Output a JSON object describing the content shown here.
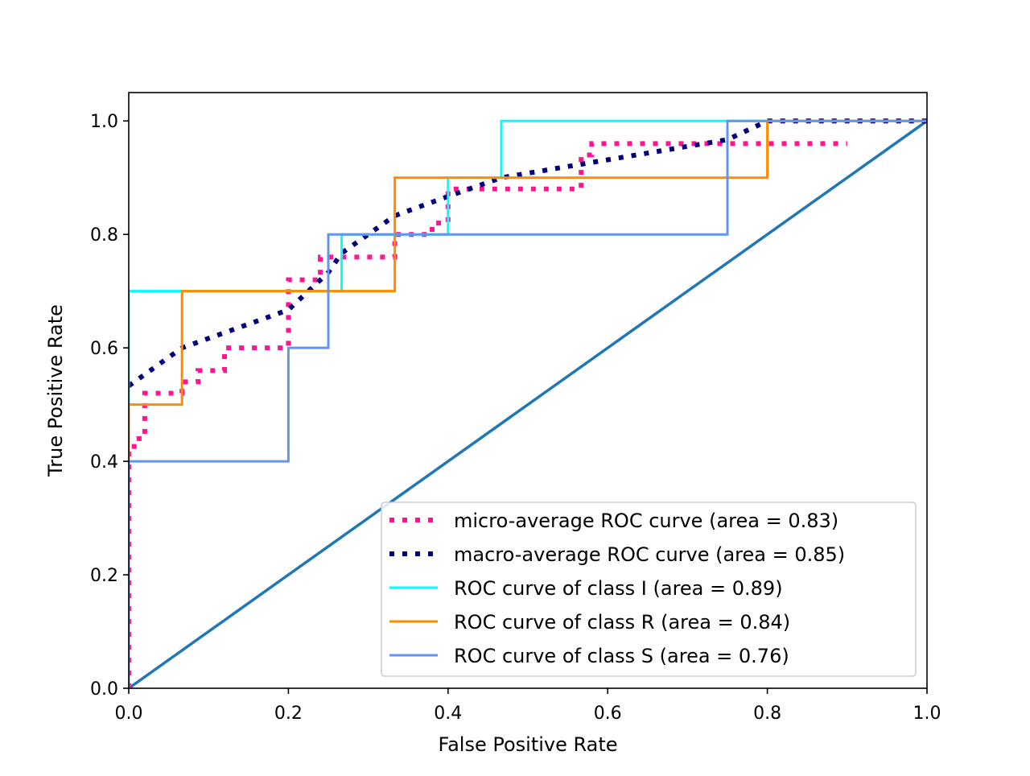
{
  "chart_data": {
    "type": "line",
    "title": "",
    "xlabel": "False Positive Rate",
    "ylabel": "True Positive Rate",
    "xlim": [
      0.0,
      1.0
    ],
    "ylim": [
      0.0,
      1.05
    ],
    "xticks": [
      "0.0",
      "0.2",
      "0.4",
      "0.6",
      "0.8",
      "1.0"
    ],
    "yticks": [
      "0.0",
      "0.2",
      "0.4",
      "0.6",
      "0.8",
      "1.0"
    ],
    "grid": false,
    "legend_position": "lower-right",
    "series": [
      {
        "name": "micro-average ROC curve (area = 0.83)",
        "color": "#ff1493",
        "style": "dotted",
        "x": [
          0.0,
          0.0,
          0.0067,
          0.0067,
          0.02,
          0.02,
          0.0667,
          0.0667,
          0.0867,
          0.0867,
          0.12,
          0.12,
          0.2,
          0.2,
          0.24,
          0.24,
          0.3333,
          0.3333,
          0.38,
          0.38,
          0.4,
          0.4,
          0.5667,
          0.5667,
          0.58,
          0.58,
          0.9
        ],
        "y": [
          0.0,
          0.42,
          0.42,
          0.44,
          0.44,
          0.52,
          0.52,
          0.54,
          0.54,
          0.56,
          0.56,
          0.6,
          0.6,
          0.72,
          0.72,
          0.76,
          0.76,
          0.8,
          0.8,
          0.82,
          0.82,
          0.88,
          0.88,
          0.94,
          0.94,
          0.96,
          0.96
        ]
      },
      {
        "name": "macro-average ROC curve (area = 0.85)",
        "color": "#000080",
        "style": "dotted",
        "x": [
          0.0,
          0.0667,
          0.2,
          0.25,
          0.2667,
          0.3333,
          0.4,
          0.4667,
          0.75,
          0.8,
          1.0
        ],
        "y": [
          0.533,
          0.6,
          0.667,
          0.733,
          0.767,
          0.833,
          0.867,
          0.9,
          0.967,
          1.0,
          1.0
        ]
      },
      {
        "name": "ROC curve of class I (area = 0.89)",
        "color": "#00ffff",
        "style": "solid",
        "x": [
          0.0,
          0.0,
          0.0667,
          0.0667,
          0.2667,
          0.2667,
          0.4,
          0.4,
          0.4667,
          0.4667,
          1.0
        ],
        "y": [
          0.0,
          0.7,
          0.7,
          0.7,
          0.7,
          0.8,
          0.8,
          0.9,
          0.9,
          1.0,
          1.0
        ]
      },
      {
        "name": "ROC curve of class R (area = 0.84)",
        "color": "#ff8c00",
        "style": "solid",
        "x": [
          0.0,
          0.0,
          0.0667,
          0.0667,
          0.3333,
          0.3333,
          0.8,
          0.8,
          1.0
        ],
        "y": [
          0.0,
          0.5,
          0.5,
          0.7,
          0.7,
          0.9,
          0.9,
          1.0,
          1.0
        ]
      },
      {
        "name": "ROC curve of class S (area = 0.76)",
        "color": "#6495ed",
        "style": "solid",
        "x": [
          0.0,
          0.0,
          0.2,
          0.2,
          0.25,
          0.25,
          0.75,
          0.75,
          1.0
        ],
        "y": [
          0.0,
          0.4,
          0.4,
          0.6,
          0.6,
          0.8,
          0.8,
          1.0,
          1.0
        ]
      },
      {
        "name": "",
        "color": "#1f77b4",
        "style": "solid",
        "x": [
          0.0,
          1.0
        ],
        "y": [
          0.0,
          1.0
        ]
      }
    ]
  }
}
